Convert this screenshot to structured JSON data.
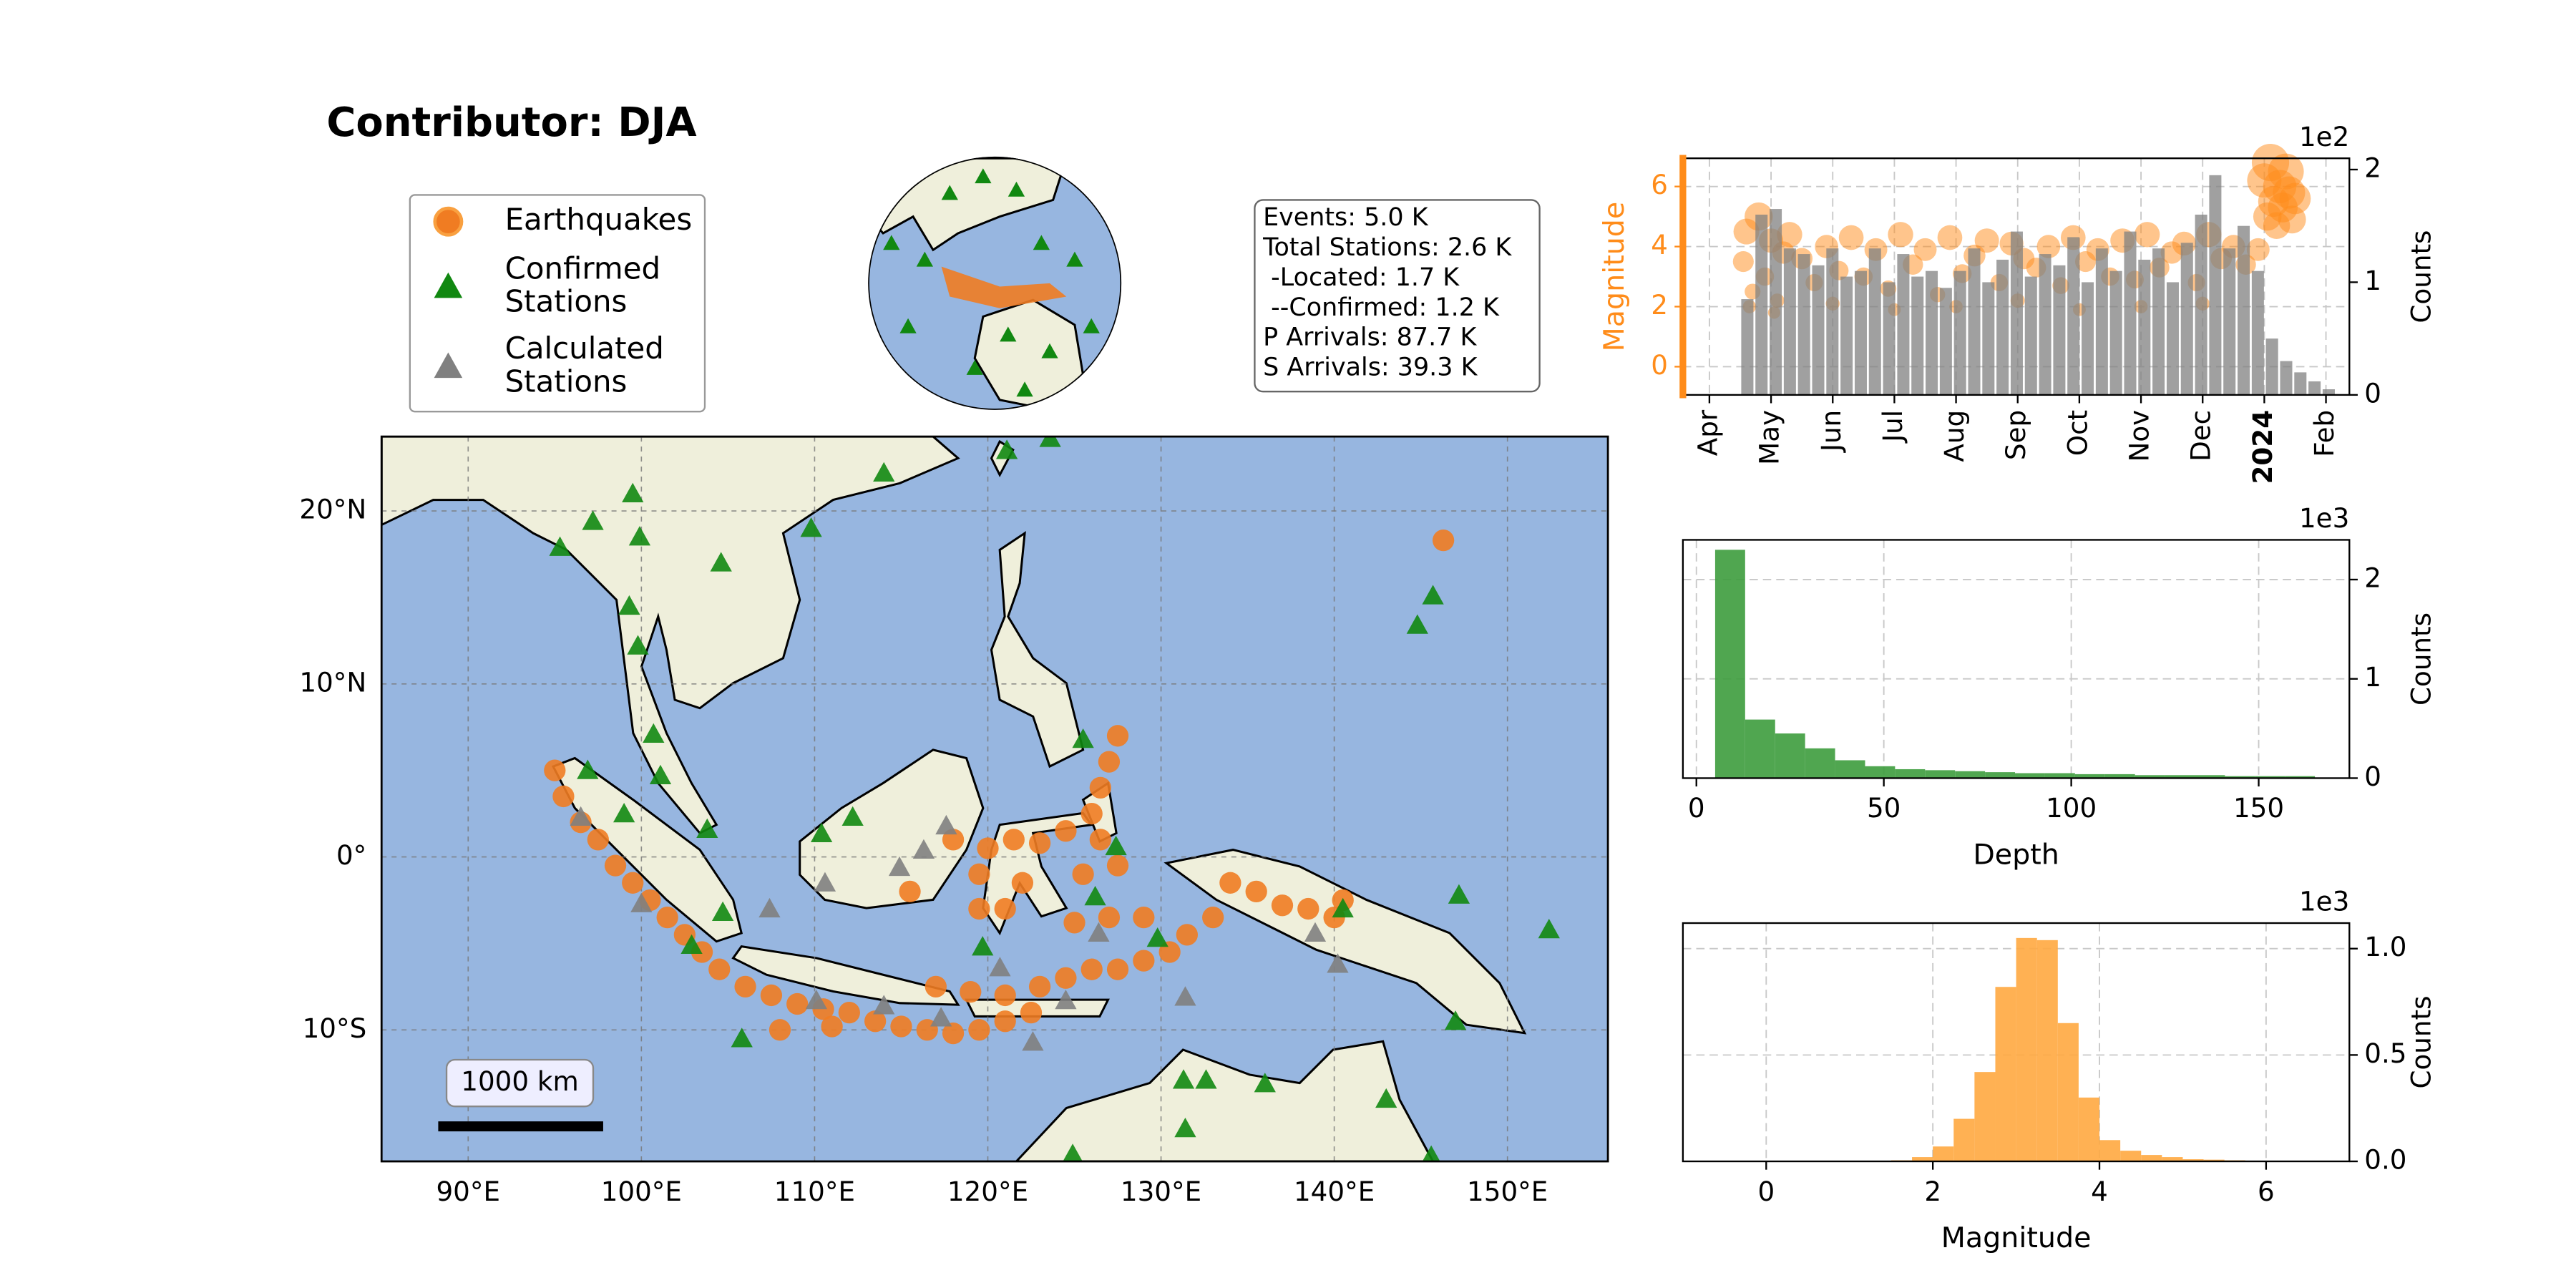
{
  "title": "Contributor: DJA",
  "stats": [
    "Events: 5.0 K",
    "Total Stations: 2.6 K",
    " -Located: 1.7 K",
    " --Confirmed: 1.2 K",
    "P Arrivals: 87.7 K",
    "S Arrivals: 39.3 K"
  ],
  "chart_data": [
    {
      "type": "map",
      "scale_label": "1000 km",
      "grid": true,
      "xlim": [
        85,
        155.8
      ],
      "ylim": [
        -17.6,
        24.3
      ],
      "xticks": [
        {
          "value": 90,
          "label": "90°E"
        },
        {
          "value": 100,
          "label": "100°E"
        },
        {
          "value": 110,
          "label": "110°E"
        },
        {
          "value": 120,
          "label": "120°E"
        },
        {
          "value": 130,
          "label": "130°E"
        },
        {
          "value": 140,
          "label": "140°E"
        },
        {
          "value": 150,
          "label": "150°E"
        }
      ],
      "yticks": [
        {
          "value": -10,
          "label": "10°S"
        },
        {
          "value": 0,
          "label": "0°"
        },
        {
          "value": 10,
          "label": "10°N"
        },
        {
          "value": 20,
          "label": "20°N"
        }
      ],
      "series": [
        {
          "name": "Earthquakes",
          "color": "#f07c22",
          "marker": "circle",
          "x": [
            95,
            95.5,
            96.5,
            97.5,
            98.5,
            99.5,
            100.5,
            101.5,
            102.5,
            103.5,
            104.5,
            106,
            107.5,
            109,
            110.5,
            112,
            113.5,
            115,
            116.5,
            118,
            119.5,
            121,
            122.5,
            108,
            111,
            117,
            119,
            121,
            123,
            124.5,
            126,
            127.5,
            129,
            130.5,
            131.5,
            129,
            127,
            125,
            119.5,
            120,
            121.5,
            123,
            124.5,
            126,
            126.5,
            127,
            127.5,
            126.5,
            127.5,
            125.5,
            122,
            121,
            119.5,
            134,
            135.5,
            137,
            138.5,
            140,
            140.5,
            133,
            115.5,
            118,
            146.3
          ],
          "y": [
            5,
            3.5,
            2,
            1,
            -0.5,
            -1.5,
            -2.5,
            -3.5,
            -4.5,
            -5.5,
            -6.5,
            -7.5,
            -8,
            -8.5,
            -8.8,
            -9,
            -9.5,
            -9.8,
            -10,
            -10.2,
            -10,
            -9.5,
            -9,
            -10,
            -9.8,
            -7.5,
            -7.8,
            -8,
            -7.5,
            -7,
            -6.5,
            -6.5,
            -6,
            -5.5,
            -4.5,
            -3.5,
            -3.5,
            -3.8,
            -1,
            0.5,
            1,
            0.8,
            1.5,
            2.5,
            4,
            5.5,
            7,
            1,
            -0.5,
            -1,
            -1.5,
            -3,
            -3,
            -1.5,
            -2,
            -2.8,
            -3,
            -3.5,
            -2.5,
            -3.5,
            -2,
            1,
            18.3
          ]
        },
        {
          "name": "Confirmed\nStations",
          "color": "#118811",
          "marker": "triangle",
          "x": [
            99.5,
            99.9,
            97.2,
            95.3,
            104.6,
            99.3,
            99.8,
            100.7,
            101.1,
            96.9,
            99,
            103.8,
            104.7,
            102.9,
            105.8,
            110.4,
            112.2,
            109.8,
            114,
            121.1,
            123.6,
            125.5,
            127.4,
            126.2,
            129.8,
            119.7,
            131.3,
            132.6,
            136,
            131.4,
            143,
            140.5,
            147.2,
            147,
            145.7,
            144.8,
            152.4,
            124.9,
            145.6
          ],
          "y": [
            21,
            18.5,
            19.4,
            17.9,
            17,
            14.5,
            12.2,
            7.1,
            4.7,
            5,
            2.5,
            1.6,
            -3.2,
            -5.1,
            -10.5,
            1.35,
            2.3,
            19,
            22.2,
            23.5,
            24.2,
            6.8,
            0.6,
            -2.3,
            -4.7,
            -5.2,
            -12.9,
            -12.9,
            -13.1,
            -15.7,
            -14,
            -3,
            -2.2,
            -9.5,
            15.1,
            13.4,
            -4.2,
            -17.2,
            -17.3
          ]
        },
        {
          "name": "Calculated\nStations",
          "color": "#808080",
          "marker": "triangle",
          "x": [
            96.5,
            100,
            107.4,
            110.6,
            114.9,
            116.3,
            117.6,
            120.7,
            124.5,
            131.4,
            140.2,
            138.9,
            126.4,
            110.1,
            114,
            117.3,
            122.6
          ],
          "y": [
            2.3,
            -2.7,
            -3,
            -1.5,
            -0.6,
            0.4,
            1.8,
            -6.4,
            -8.3,
            -8.1,
            -6.2,
            -4.4,
            -4.4,
            -8.3,
            -8.6,
            -9.3,
            -10.7
          ]
        }
      ]
    },
    {
      "type": "combo",
      "ylabel": "Magnitude",
      "y2label": "Counts",
      "y2_offset_label": "1e2",
      "grid": true,
      "xlim": [
        -0.43,
        10.38
      ],
      "ylim": [
        -0.94,
        6.94
      ],
      "y2lim": [
        0,
        2.1
      ],
      "xticks": [
        {
          "value": 0,
          "label": "Apr"
        },
        {
          "value": 1,
          "label": "May"
        },
        {
          "value": 2,
          "label": "Jun"
        },
        {
          "value": 3,
          "label": "Jul"
        },
        {
          "value": 4,
          "label": "Aug"
        },
        {
          "value": 5,
          "label": "Sep"
        },
        {
          "value": 6,
          "label": "Oct"
        },
        {
          "value": 7,
          "label": "Nov"
        },
        {
          "value": 8,
          "label": "Dec"
        },
        {
          "value": 9,
          "label": "2024"
        },
        {
          "value": 10,
          "label": "Feb"
        }
      ],
      "yticks": [
        0,
        2,
        4,
        6
      ],
      "y2ticks": [
        0,
        1,
        2
      ],
      "axis_color": "#ff8c1a",
      "series": [
        {
          "type": "scatter",
          "color": "#ff8c1a",
          "x": [
            0.55,
            0.6,
            0.7,
            0.8,
            0.9,
            1.0,
            1.1,
            1.2,
            1.3,
            1.5,
            1.7,
            1.9,
            2.1,
            2.3,
            2.5,
            2.7,
            2.9,
            3.1,
            3.3,
            3.5,
            3.7,
            3.9,
            4.1,
            4.3,
            4.5,
            4.7,
            4.9,
            5.1,
            5.3,
            5.5,
            5.7,
            5.9,
            6.1,
            6.3,
            6.5,
            6.7,
            6.9,
            7.1,
            7.3,
            7.5,
            7.7,
            7.9,
            8.1,
            8.3,
            8.5,
            8.7,
            8.9,
            9.0,
            9.05,
            9.1,
            9.15,
            9.2,
            9.25,
            9.3,
            9.35,
            9.4,
            9.45,
            9.5,
            0.65,
            1.05,
            2.0,
            3.0,
            4.0,
            5.0,
            6.0,
            7.0,
            8.0
          ],
          "y": [
            3.5,
            4.5,
            2.5,
            5.0,
            3.0,
            4.2,
            2.2,
            3.8,
            4.4,
            3.6,
            2.8,
            4.0,
            3.2,
            4.3,
            3.0,
            3.9,
            2.6,
            4.4,
            3.4,
            3.9,
            2.4,
            4.3,
            3.1,
            3.7,
            4.2,
            2.8,
            4.1,
            3.6,
            3.3,
            4.0,
            2.7,
            4.3,
            3.5,
            3.9,
            3.0,
            4.2,
            2.9,
            4.4,
            3.3,
            3.8,
            4.1,
            2.8,
            4.4,
            3.6,
            4.0,
            3.4,
            3.9,
            6.2,
            5.0,
            6.8,
            5.5,
            4.7,
            6.0,
            5.3,
            6.5,
            5.8,
            4.9,
            5.6,
            2.0,
            1.8,
            2.1,
            1.9,
            2.0,
            2.2,
            1.9,
            2.0,
            2.1
          ]
        },
        {
          "type": "histogram",
          "axis": "y2",
          "color": "#808080",
          "bins": [
            0.5,
            0.73,
            0.96,
            1.19,
            1.42,
            1.65,
            1.88,
            2.11,
            2.34,
            2.57,
            2.8,
            3.03,
            3.26,
            3.49,
            3.72,
            3.95,
            4.18,
            4.41,
            4.64,
            4.87,
            5.1,
            5.33,
            5.56,
            5.79,
            6.02,
            6.25,
            6.48,
            6.71,
            6.94,
            7.17,
            7.4,
            7.63,
            7.86,
            8.09,
            8.32,
            8.55,
            8.78,
            9.01,
            9.24,
            9.47,
            9.7,
            9.93,
            10.16
          ],
          "values": [
            0.85,
            1.6,
            1.65,
            1.3,
            1.25,
            1.15,
            1.3,
            1.05,
            1.1,
            1.3,
            1.0,
            1.25,
            1.05,
            1.1,
            0.95,
            1.1,
            1.3,
            1.0,
            1.2,
            1.45,
            1.05,
            1.25,
            1.15,
            1.4,
            1.0,
            1.3,
            1.1,
            1.45,
            1.2,
            1.3,
            1.0,
            1.35,
            1.6,
            1.95,
            1.3,
            1.5,
            1.1,
            0.5,
            0.3,
            0.2,
            0.12,
            0.05
          ]
        }
      ]
    },
    {
      "type": "histogram",
      "xlabel": "Depth",
      "ylabel": "Counts",
      "y_offset_label": "1e3",
      "grid": true,
      "color": "#3d9c3d",
      "xlim": [
        -3.6,
        174.2
      ],
      "ylim": [
        0,
        2.4
      ],
      "xticks": [
        0,
        50,
        100,
        150
      ],
      "yticks": [
        0,
        1,
        2
      ],
      "bins": [
        5,
        13,
        21,
        29,
        37,
        45,
        53,
        61,
        69,
        77,
        85,
        93,
        101,
        109,
        117,
        125,
        133,
        141,
        149,
        157,
        165
      ],
      "values": [
        2.3,
        0.59,
        0.45,
        0.3,
        0.18,
        0.12,
        0.09,
        0.08,
        0.07,
        0.06,
        0.05,
        0.05,
        0.04,
        0.04,
        0.03,
        0.03,
        0.03,
        0.02,
        0.02,
        0.02
      ]
    },
    {
      "type": "histogram",
      "xlabel": "Magnitude",
      "ylabel": "Counts",
      "y_offset_label": "1e3",
      "grid": true,
      "color": "#ffa940",
      "xlim": [
        -1,
        7
      ],
      "ylim": [
        0,
        1.12
      ],
      "xticks": [
        0,
        2,
        4,
        6
      ],
      "yticks": [
        {
          "value": 0,
          "label": "0.0"
        },
        0.5,
        {
          "value": 1,
          "label": "1.0"
        }
      ],
      "bins": [
        1.5,
        1.75,
        2,
        2.25,
        2.5,
        2.75,
        3,
        3.25,
        3.5,
        3.75,
        4,
        4.25,
        4.5,
        4.75,
        5,
        5.25,
        5.5,
        5.75,
        6
      ],
      "values": [
        0.005,
        0.02,
        0.07,
        0.2,
        0.42,
        0.82,
        1.05,
        1.04,
        0.65,
        0.3,
        0.1,
        0.05,
        0.03,
        0.02,
        0.01,
        0.008,
        0.005,
        0.003
      ]
    }
  ]
}
